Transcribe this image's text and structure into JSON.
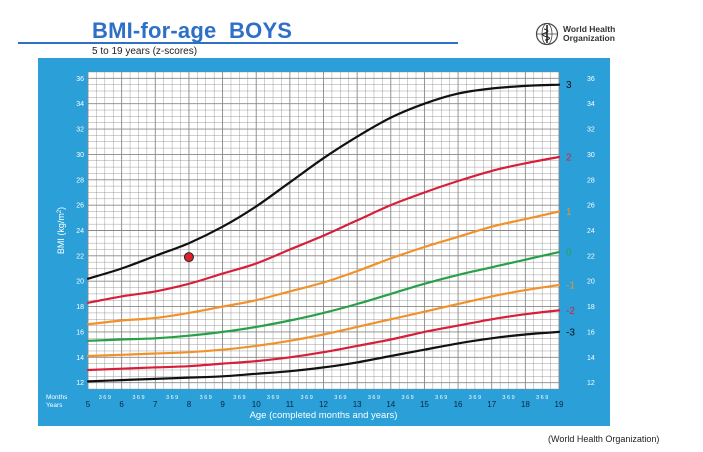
{
  "chart_data": {
    "type": "line",
    "title": "BMI-for-age  BOYS",
    "subtitle": "5 to 19 years (z-scores)",
    "xlabel": "Age (completed months and years)",
    "ylabel": "BMI (kg/m²)",
    "ylabel_main": "BMI (kg/m",
    "ylabel_sup": "2",
    "ylabel_close": ")",
    "xlim": [
      5,
      19
    ],
    "ylim": [
      11.5,
      36.5
    ],
    "x_ticks": [
      "5",
      "6",
      "7",
      "8",
      "9",
      "10",
      "11",
      "12",
      "13",
      "14",
      "15",
      "16",
      "17",
      "18",
      "19"
    ],
    "y_ticks": [
      12,
      14,
      16,
      18,
      20,
      22,
      24,
      26,
      28,
      30,
      32,
      34,
      36
    ],
    "months_row_label": "Months",
    "years_row_label": "Years",
    "month_tick_text": "3 6 9",
    "grid": true,
    "colors": {
      "background": "#2a9fd8",
      "plot_bg": "#ffffff",
      "grid_line": "#888888",
      "axis_text_light": "#ffffff",
      "black": "#111111",
      "red": "#d6203b",
      "orange": "#f0912a",
      "green": "#27a04a",
      "marker": "#e0202a"
    },
    "series": [
      {
        "name": "3",
        "color": "black",
        "x": [
          5,
          6,
          7,
          8,
          9,
          10,
          11,
          12,
          13,
          14,
          15,
          16,
          17,
          18,
          19
        ],
        "values": [
          20.2,
          21.0,
          22.0,
          23.0,
          24.3,
          25.9,
          27.8,
          29.7,
          31.4,
          32.9,
          34.0,
          34.8,
          35.2,
          35.4,
          35.5
        ]
      },
      {
        "name": "2",
        "color": "red",
        "x": [
          5,
          6,
          7,
          8,
          9,
          10,
          11,
          12,
          13,
          14,
          15,
          16,
          17,
          18,
          19
        ],
        "values": [
          18.3,
          18.8,
          19.2,
          19.8,
          20.6,
          21.4,
          22.5,
          23.6,
          24.8,
          26.0,
          27.0,
          27.9,
          28.7,
          29.3,
          29.8
        ]
      },
      {
        "name": "1",
        "color": "orange",
        "x": [
          5,
          6,
          7,
          8,
          9,
          10,
          11,
          12,
          13,
          14,
          15,
          16,
          17,
          18,
          19
        ],
        "values": [
          16.6,
          16.9,
          17.1,
          17.5,
          18.0,
          18.5,
          19.2,
          19.9,
          20.8,
          21.8,
          22.7,
          23.5,
          24.3,
          24.9,
          25.5
        ]
      },
      {
        "name": "0",
        "color": "green",
        "x": [
          5,
          6,
          7,
          8,
          9,
          10,
          11,
          12,
          13,
          14,
          15,
          16,
          17,
          18,
          19
        ],
        "values": [
          15.3,
          15.4,
          15.5,
          15.7,
          16.0,
          16.4,
          16.9,
          17.5,
          18.2,
          19.0,
          19.8,
          20.5,
          21.1,
          21.7,
          22.3
        ]
      },
      {
        "name": "-1",
        "color": "orange",
        "x": [
          5,
          6,
          7,
          8,
          9,
          10,
          11,
          12,
          13,
          14,
          15,
          16,
          17,
          18,
          19
        ],
        "values": [
          14.1,
          14.2,
          14.3,
          14.4,
          14.6,
          14.9,
          15.3,
          15.8,
          16.4,
          17.0,
          17.6,
          18.2,
          18.8,
          19.3,
          19.7
        ]
      },
      {
        "name": "-2",
        "color": "red",
        "x": [
          5,
          6,
          7,
          8,
          9,
          10,
          11,
          12,
          13,
          14,
          15,
          16,
          17,
          18,
          19
        ],
        "values": [
          13.0,
          13.1,
          13.2,
          13.3,
          13.5,
          13.7,
          14.0,
          14.4,
          14.9,
          15.4,
          16.0,
          16.5,
          17.0,
          17.4,
          17.7
        ]
      },
      {
        "name": "-3",
        "color": "black",
        "x": [
          5,
          6,
          7,
          8,
          9,
          10,
          11,
          12,
          13,
          14,
          15,
          16,
          17,
          18,
          19
        ],
        "values": [
          12.1,
          12.2,
          12.3,
          12.4,
          12.5,
          12.7,
          12.9,
          13.2,
          13.6,
          14.1,
          14.6,
          15.1,
          15.5,
          15.8,
          16.0
        ]
      }
    ],
    "marker": {
      "x": 8.0,
      "y": 21.9
    }
  },
  "header": {
    "logo_icon": "who-emblem-icon",
    "logo_line1": "World Health",
    "logo_line2": "Organization"
  },
  "footer": {
    "source": "(World Health Organization)"
  }
}
